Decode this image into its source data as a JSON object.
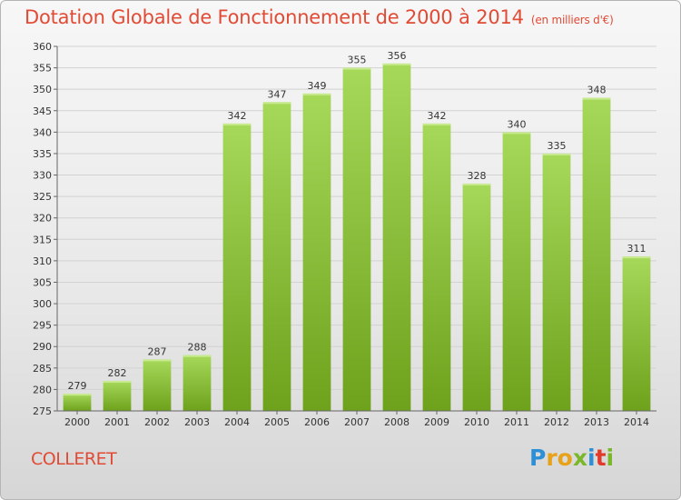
{
  "header": {
    "title": "Dotation Globale de Fonctionnement de 2000 à 2014",
    "unit": "(en milliers d'€)"
  },
  "commune": "COLLERET",
  "logo": {
    "text": "Proxiti",
    "letters": [
      "P",
      "r",
      "o",
      "x",
      "i",
      "t",
      "i"
    ]
  },
  "colors": {
    "accent": "#e14b35",
    "bar_light": "#a6d85a",
    "bar_dark": "#6ea21c"
  },
  "chart_data": {
    "type": "bar",
    "title": "Dotation Globale de Fonctionnement de 2000 à 2014",
    "subtitle": "(en milliers d'€)",
    "xlabel": "",
    "ylabel": "",
    "categories": [
      "2000",
      "2001",
      "2002",
      "2003",
      "2004",
      "2005",
      "2006",
      "2007",
      "2008",
      "2009",
      "2010",
      "2011",
      "2012",
      "2013",
      "2014"
    ],
    "values": [
      279,
      282,
      287,
      288,
      342,
      347,
      349,
      355,
      356,
      342,
      328,
      340,
      335,
      348,
      311
    ],
    "ylim": [
      275,
      360
    ],
    "yticks": [
      275,
      280,
      285,
      290,
      295,
      300,
      305,
      310,
      315,
      320,
      325,
      330,
      335,
      340,
      345,
      350,
      355,
      360
    ],
    "grid": "horizontal",
    "data_labels": true
  }
}
